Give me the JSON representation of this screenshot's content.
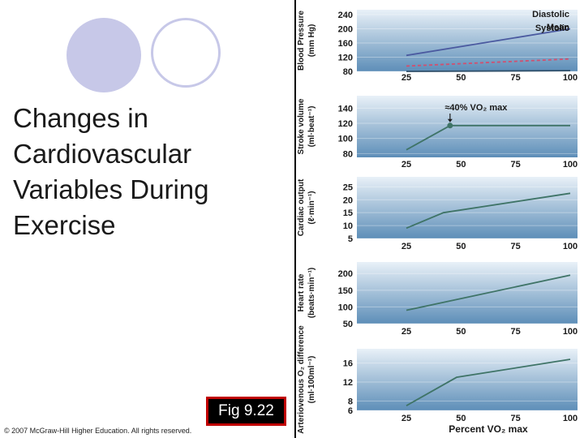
{
  "slide": {
    "title": "Changes in\nCardiovascular\nVariables During\nExercise",
    "figure_label": "Fig 9.22",
    "copyright": "© 2007 McGraw-Hill Higher Education. All rights reserved."
  },
  "colors": {
    "accent_circle": "#c7c8e8",
    "panel_top": "#e9f1f8",
    "panel_bottom": "#5d8eb8",
    "line": "#3f7467",
    "systolic_line": "#4b5aa0",
    "diastolic_line": "#2f4f6a",
    "mean_line": "#d05070",
    "label_box": "#c00000"
  },
  "chart_data": [
    {
      "type": "line",
      "ylabel": "Blood Pressure (mm Hg)",
      "xlabel": "",
      "x_ticks": [
        "25",
        "50",
        "75",
        "100"
      ],
      "y_ticks": [
        "240",
        "200",
        "160",
        "120",
        "80"
      ],
      "xlim": [
        25,
        100
      ],
      "ylim": [
        80,
        240
      ],
      "series": [
        {
          "name": "Systolic",
          "x": [
            25,
            100
          ],
          "y": [
            125,
            200
          ]
        },
        {
          "name": "Mean",
          "x": [
            25,
            100
          ],
          "y": [
            95,
            115
          ]
        },
        {
          "name": "Diastolic",
          "x": [
            25,
            100
          ],
          "y": [
            80,
            82
          ]
        }
      ]
    },
    {
      "type": "line",
      "ylabel": "Stroke volume (ml·beat⁻¹)",
      "xlabel": "",
      "x_ticks": [
        "25",
        "50",
        "75",
        "100"
      ],
      "y_ticks": [
        "140",
        "120",
        "100",
        "80"
      ],
      "xlim": [
        25,
        100
      ],
      "ylim": [
        75,
        150
      ],
      "annotation": "≈40% VO₂ max",
      "series": [
        {
          "name": "",
          "x": [
            25,
            45,
            100
          ],
          "y": [
            85,
            117,
            117
          ]
        }
      ]
    },
    {
      "type": "line",
      "ylabel": "Cardiac output (ℓ·min⁻¹)",
      "xlabel": "",
      "x_ticks": [
        "25",
        "50",
        "75",
        "100"
      ],
      "y_ticks": [
        "25",
        "20",
        "15",
        "10",
        "5"
      ],
      "xlim": [
        25,
        100
      ],
      "ylim": [
        5,
        27
      ],
      "series": [
        {
          "name": "",
          "x": [
            25,
            42,
            100
          ],
          "y": [
            9,
            15,
            22.5
          ]
        }
      ]
    },
    {
      "type": "line",
      "ylabel": "Heart rate (beats·min⁻¹)",
      "xlabel": "",
      "x_ticks": [
        "25",
        "50",
        "75",
        "100"
      ],
      "y_ticks": [
        "200",
        "150",
        "100",
        "50"
      ],
      "xlim": [
        25,
        100
      ],
      "ylim": [
        50,
        220
      ],
      "series": [
        {
          "name": "",
          "x": [
            25,
            100
          ],
          "y": [
            90,
            195
          ]
        }
      ]
    },
    {
      "type": "line",
      "ylabel": "Arteriovenous O₂ difference (ml·100ml⁻¹)",
      "xlabel": "Percent VO₂ max",
      "x_ticks": [
        "25",
        "50",
        "75",
        "100"
      ],
      "y_ticks": [
        "16",
        "12",
        "8",
        "6"
      ],
      "xlim": [
        25,
        100
      ],
      "ylim": [
        6,
        18
      ],
      "series": [
        {
          "name": "",
          "x": [
            25,
            48,
            100
          ],
          "y": [
            7,
            13,
            16.8
          ]
        }
      ]
    }
  ]
}
